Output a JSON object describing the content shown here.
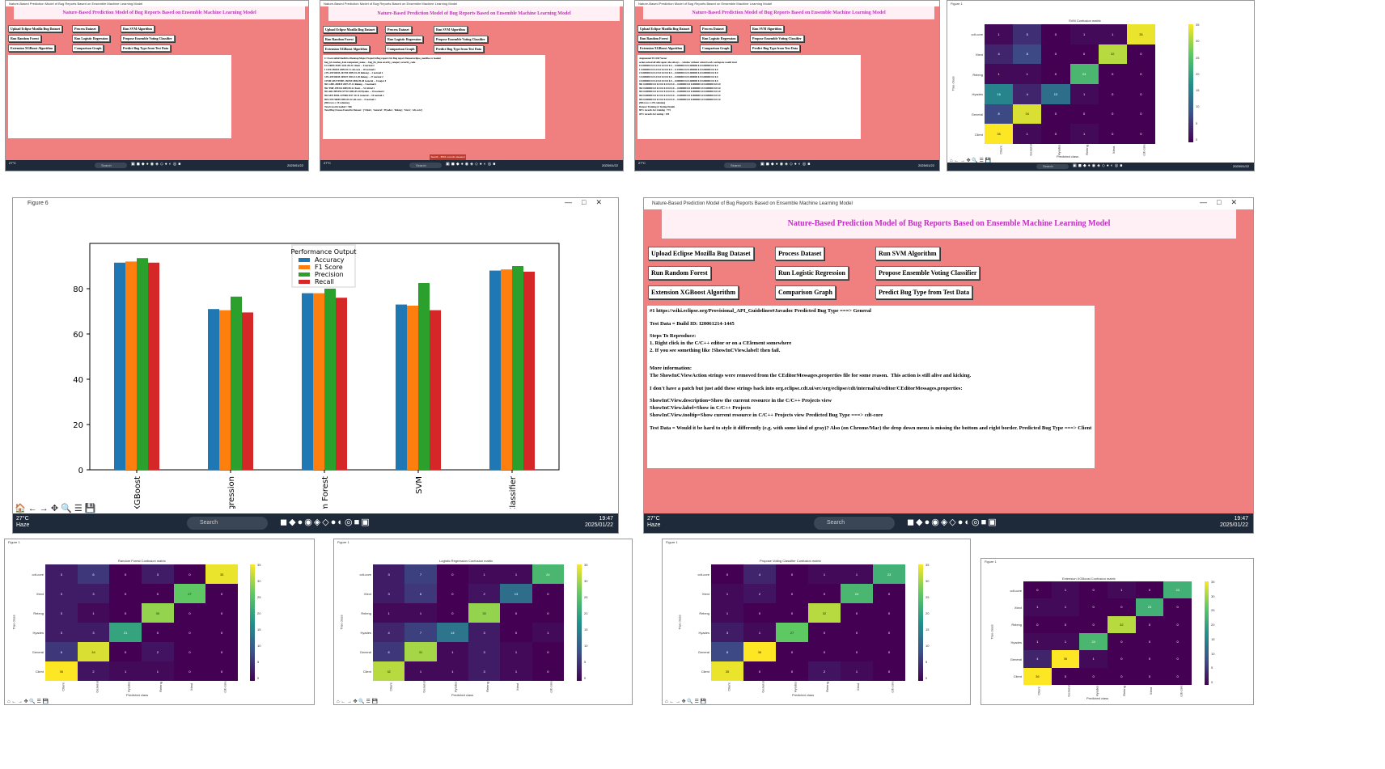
{
  "app": {
    "title": "Nature-Based Prediction Model of Bug Reports Based on Ensemble Machine Learning Model",
    "header": "Nature-Based Prediction Model of Bug Reports Based on Ensemble Machine Learning Model",
    "buttons": [
      "Upload Eclipse Mozilla Bug Dataset",
      "Process Dataset",
      "Run SVM Algorithm",
      "Run Random Forest",
      "Run Logistic Regression",
      "Propose Ensemble Voting Classifier",
      "Extension XGBoost Algorithm",
      "Comparison Graph",
      "Predict Bug Type from Test Data"
    ]
  },
  "taskbar": {
    "temp": "27°C",
    "weather": "Haze",
    "search": "Search",
    "lang": "ENG",
    "region": "IN",
    "time": "19:47",
    "date": "2025/01/22"
  },
  "panel2": {
    "lines": [
      "C:/Users/abhi/OneDrive/Desktop/Major Project/6.Bug report/2.bt Bug report Dataset/eclipse_mozilla.csv loaded",
      "bug_id creation_date component_name ... bug_fix_time severity_category severity_code",
      "0 CORE9-39457 2011-08-31 Client ... 8 normal 2",
      "1 CDT-256923 2009-03-11 cdt-core ... 20 normal 2",
      "2 PLATFORM-261769 2009-01-20 Relesng ... 2 normal 2",
      "3 PLATFORM-369527 2016-12-20 Releng ... 27 normal 2",
      "4 EMF-RUNTIME-156769 2006-09-08 General ... 0 major 4",
      "961 GMF-200819 2007-07-14 Releng ... 5 normal 2",
      "962 TMF-299134 2009-09-22 Xtext ... 51 trivial 1",
      "963 ARCHIVED-97710 2005-05-18 Hyades ... 29 normal 2",
      "964 SEP-MDL-527868 2017-10-11 General ... 18 normal 2",
      "965 CDT-56699 2005-04-22 cdt-core ... 6 normal 2",
      "[966 rows x 19 columns]",
      "Total records loaded = 966",
      "Total Bug Classes Found in Dataset : ['Client', 'General', 'Hyades', 'Releng', 'Xtext', 'cdt-core']"
    ],
    "status": "Search - 8501 records released"
  },
  "panel3": {
    "lines": [
      "Augmented TF-IDF Vector",
      "action actual all able apear also always ... window without wizard work workspace would xtext",
      "0 0.000000 0.0 0.0 0.0 0.0 0.0 0.0 ... 0.000000 0.0 0.000000 0.0 0.000000 0.0 0.0",
      "1 0.000000 0.0 0.0 0.0 0.0 0.0 0.0 ... 0.135694 0.0 0.000000 0.0 0.000000 0.0 0.0",
      "2 0.000000 0.0 0.0 0.0 0.0 0.0 0.0 ... 0.000000 0.0 0.000000 0.0 0.000000 0.0 0.0",
      "3 0.000000 0.0 0.0 0.0 0.0 0.0 0.0 ... 0.000000 0.0 0.000000 0.0 0.000000 0.0 0.0",
      "4 0.000000 0.0 0.0 0.0 0.0 0.0 0.0 ... 0.000000 0.0 0.000000 0.0 0.000000 0.0 0.0",
      "961 0.000000 0.0 0.0 0.0 0.0 0.0 0.0 ... 0.000000 0.0 0.000000 0.0 0.000000 0.0 0.0",
      "962 0.000000 0.0 0.0 0.0 0.0 0.0 0.0 ... 0.000000 0.0 0.000000 0.0 0.000000 0.0 0.0",
      "963 0.000000 0.0 0.0 0.0 0.0 0.0 0.0 ... 0.000000 0.0 0.000000 0.0 0.000000 0.0 0.0",
      "964 0.000000 0.0 0.0 0.0 0.0 0.0 0.0 ... 0.000000 0.0 0.000000 0.0 0.000000 0.0 0.0",
      "965 0.000000 0.0 0.0 0.0 0.0 0.0 0.0 ... 0.000000 0.0 0.000000 0.0 0.000000 0.0 0.0",
      "[966 rows x 276 columns]",
      "Dataset Training & Testing Details",
      "80% records for training : 772",
      "20% records for testing : 194"
    ]
  },
  "predict": {
    "lines": [
      "#1 https://wiki.eclipse.org/Provisional_API_Guidelines#Javadoc Predicted Bug Type ===> General",
      "",
      "Test Data = Build ID: I20061214-1445",
      "",
      "Steps To Reproduce:",
      "1. Right click in the C/C++ editor or on a CElement somewhere",
      "2. If you see something like !ShowInCView.label! then fail.",
      "",
      "",
      "More information:",
      "The ShowInCViewAction strings were removed from the CEditorMessages.properties file for some reason.  This action is still alive and kicking.",
      "",
      "I don't have a patch but just add these strings back into org.eclipse.cdt.ui/src/org/eclipse/cdt/internal/ui/editor/CEditorMessages.properties:",
      "",
      "ShowInCView.description=Show the current resource in the C/C++ Projects view",
      "ShowInCView.label=Show in C/C++ Projects",
      "ShowInCView.tooltip=Show current resource in C/C++ Projects view Predicted Bug Type ===> cdt-core",
      "",
      "Test Data = Would it be hard to style it differently (e.g. with some kind of gray)? Also (on Chrome/Mac) the drop down menu is missing the bottom and right border. Predicted Bug Type ===> Client"
    ]
  },
  "figure6": {
    "title": "Figure 6",
    "toolbar": "🏠 ← → ✥ 🔍 ☰ 💾"
  },
  "fig_small": {
    "title": "Figure 1",
    "toolbar": "⌂ ← → ✥ 🔍 ☰ 💾"
  },
  "confusion": {
    "classes": [
      "cdt-core",
      "Xtext",
      "Releng",
      "Hyades",
      "General",
      "Client"
    ],
    "xclasses": [
      "Client",
      "General",
      "Hyades",
      "Releng",
      "Xtext",
      "cdt-core"
    ],
    "xlabel": "Predicted class",
    "ylabel": "True class",
    "cbar": [
      "35",
      "30",
      "25",
      "20",
      "15",
      "10",
      "5",
      "0"
    ],
    "matrices": [
      {
        "title": "SVM Confusion matrix",
        "m": [
          [
            1,
            5,
            0,
            1,
            1,
            35
          ],
          [
            4,
            8,
            0,
            0,
            32,
            0
          ],
          [
            1,
            1,
            0,
            24,
            0,
            0
          ],
          [
            16,
            4,
            13,
            1,
            0,
            0
          ],
          [
            8,
            34,
            0,
            0,
            0,
            0
          ],
          [
            36,
            1,
            0,
            1,
            0,
            0
          ]
        ]
      },
      {
        "title": "Random Forest Confusion matrix",
        "m": [
          [
            3,
            6,
            0,
            3,
            0,
            35
          ],
          [
            3,
            3,
            0,
            0,
            27,
            0
          ],
          [
            3,
            1,
            0,
            30,
            0,
            0
          ],
          [
            3,
            3,
            21,
            0,
            0,
            0
          ],
          [
            6,
            34,
            0,
            2,
            0,
            0
          ],
          [
            36,
            2,
            1,
            1,
            0,
            0
          ]
        ]
      },
      {
        "title": "Logistic Regression Confusion matrix",
        "m": [
          [
            3,
            7,
            0,
            1,
            1,
            24
          ],
          [
            3,
            6,
            0,
            2,
            13,
            0
          ],
          [
            1,
            1,
            0,
            30,
            0,
            0
          ],
          [
            4,
            7,
            14,
            3,
            0,
            1
          ],
          [
            6,
            31,
            1,
            3,
            1,
            0
          ],
          [
            32,
            1,
            1,
            3,
            1,
            0
          ]
        ]
      },
      {
        "title": "Propose Voting Classifier Confusion matrix",
        "m": [
          [
            0,
            4,
            0,
            1,
            1,
            23
          ],
          [
            1,
            2,
            0,
            0,
            24,
            0
          ],
          [
            1,
            0,
            0,
            32,
            0,
            0
          ],
          [
            3,
            1,
            27,
            0,
            0,
            0
          ],
          [
            8,
            36,
            0,
            0,
            0,
            0
          ],
          [
            35,
            0,
            0,
            2,
            1,
            0
          ]
        ]
      },
      {
        "title": "Extension XGBoost Confusion matrix",
        "m": [
          [
            0,
            1,
            0,
            1,
            0,
            23
          ],
          [
            1,
            1,
            0,
            0,
            23,
            0
          ],
          [
            0,
            0,
            0,
            32,
            0,
            0
          ],
          [
            1,
            1,
            24,
            0,
            0,
            0
          ],
          [
            4,
            36,
            1,
            0,
            0,
            0
          ],
          [
            36,
            0,
            0,
            0,
            0,
            0
          ]
        ]
      }
    ]
  },
  "chart_data": {
    "type": "bar",
    "categories": [
      "Extension XGBoost",
      "Logistic Regression",
      "Random Forest",
      "SVM",
      "Voting Classifier"
    ],
    "tick_labels": [
      "n XGBoost",
      "Regression",
      "dom Forest",
      "SVM",
      "g Classifier"
    ],
    "series": [
      {
        "name": "Accuracy",
        "color": "#1f77b4",
        "values": [
          91.5,
          71,
          78,
          73,
          88
        ]
      },
      {
        "name": "F1 Score",
        "color": "#ff7f0e",
        "values": [
          92,
          70.5,
          78,
          72.5,
          88.5
        ]
      },
      {
        "name": "Precision",
        "color": "#2ca02c",
        "values": [
          93.5,
          76.5,
          80,
          82.5,
          90
        ]
      },
      {
        "name": "Recall",
        "color": "#d62728",
        "values": [
          91.5,
          69.5,
          76,
          70.5,
          87.5
        ]
      }
    ],
    "legend_title": "Performance Output",
    "legend_position": "top-center",
    "yticks": [
      "0",
      "20",
      "40",
      "60",
      "80"
    ],
    "ylim": [
      0,
      100
    ]
  }
}
